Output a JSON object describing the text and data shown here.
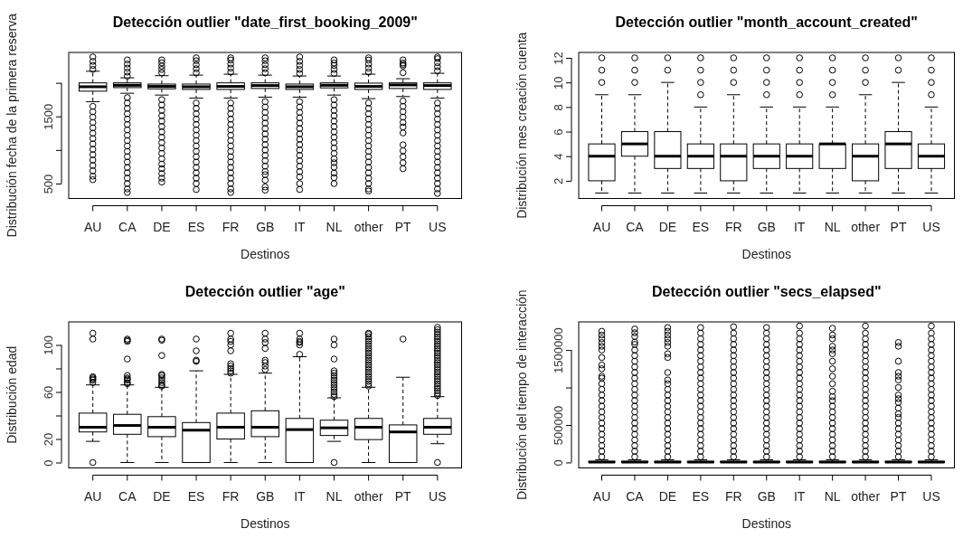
{
  "chart_data": [
    {
      "type": "box",
      "title": "Detección outlier \"date_first_booking_2009\"",
      "xlabel": "Destinos",
      "ylabel": "Distribución fecha de la primera reserva",
      "categories": [
        "AU",
        "CA",
        "DE",
        "ES",
        "FR",
        "GB",
        "IT",
        "NL",
        "other",
        "PT",
        "US"
      ],
      "ylim": [
        278,
        2453
      ],
      "yticks": [
        500,
        {
          "value": 1000,
          "label": null
        },
        1500,
        {
          "value": 2000,
          "label": null
        }
      ],
      "boxes": [
        {
          "low": 1720,
          "q1": 1876,
          "median": 1942,
          "q3": 2000,
          "high": 2173,
          "outliers": [
            1650,
            1570,
            1490,
            1410,
            1330,
            1250,
            1170,
            1090,
            1010,
            930,
            850,
            770,
            690,
            610,
            558,
            2200,
            2260,
            2320,
            2386
          ]
        },
        {
          "low": 1845,
          "q1": 1929,
          "median": 1964,
          "q3": 2000,
          "high": 2075,
          "outliers": [
            1780,
            1700,
            1620,
            1540,
            1460,
            1380,
            1300,
            1220,
            1140,
            1060,
            980,
            900,
            820,
            740,
            660,
            580,
            500,
            420,
            367,
            2100,
            2160,
            2220,
            2280,
            2342
          ]
        },
        {
          "low": 1818,
          "q1": 1911,
          "median": 1947,
          "q3": 1982,
          "high": 2107,
          "outliers": [
            1750,
            1670,
            1590,
            1510,
            1430,
            1350,
            1270,
            1190,
            1110,
            1030,
            950,
            870,
            790,
            722,
            650,
            580,
            522,
            2150,
            2200,
            2250,
            2300,
            2342
          ]
        },
        {
          "low": 1774,
          "q1": 1902,
          "median": 1942,
          "q3": 1982,
          "high": 2115,
          "outliers": [
            1700,
            1620,
            1540,
            1460,
            1380,
            1300,
            1220,
            1140,
            1060,
            980,
            900,
            820,
            740,
            660,
            580,
            500,
            411,
            2150,
            2210,
            2270,
            2330,
            2373
          ]
        },
        {
          "low": 1774,
          "q1": 1902,
          "median": 1947,
          "q3": 2000,
          "high": 2129,
          "outliers": [
            1700,
            1620,
            1540,
            1460,
            1380,
            1300,
            1220,
            1140,
            1060,
            980,
            900,
            820,
            740,
            660,
            580,
            500,
            420,
            367,
            2160,
            2220,
            2280,
            2340,
            2373
          ]
        },
        {
          "low": 1787,
          "q1": 1916,
          "median": 1960,
          "q3": 2000,
          "high": 2115,
          "outliers": [
            1720,
            1640,
            1560,
            1480,
            1400,
            1320,
            1240,
            1160,
            1080,
            1000,
            920,
            840,
            760,
            680,
            633,
            550,
            450,
            402,
            2150,
            2210,
            2270,
            2330,
            2373
          ]
        },
        {
          "low": 1787,
          "q1": 1902,
          "median": 1942,
          "q3": 1982,
          "high": 2102,
          "outliers": [
            1720,
            1640,
            1560,
            1480,
            1400,
            1320,
            1240,
            1160,
            1080,
            1000,
            920,
            840,
            760,
            677,
            600,
            500,
            411,
            2140,
            2200,
            2260,
            2320,
            2386
          ]
        },
        {
          "low": 1818,
          "q1": 1925,
          "median": 1964,
          "q3": 2000,
          "high": 2102,
          "outliers": [
            1750,
            1670,
            1590,
            1510,
            1430,
            1350,
            1270,
            1190,
            1110,
            1030,
            950,
            870,
            810,
            744,
            655,
            589,
            500,
            2140,
            2200,
            2260,
            2297,
            2342
          ]
        },
        {
          "low": 1765,
          "q1": 1902,
          "median": 1947,
          "q3": 1996,
          "high": 2129,
          "outliers": [
            1700,
            1620,
            1540,
            1460,
            1380,
            1300,
            1220,
            1140,
            1060,
            980,
            900,
            820,
            740,
            660,
            580,
            500,
            420,
            389,
            2160,
            2220,
            2280,
            2340,
            2373
          ]
        },
        {
          "low": 1796,
          "q1": 1916,
          "median": 1969,
          "q3": 2000,
          "high": 2062,
          "outliers": [
            1730,
            1650,
            1570,
            1490,
            1410,
            1343,
            1254,
            1077,
            988,
            899,
            810,
            722,
            2151,
            2253,
            2275,
            2297,
            2342
          ]
        },
        {
          "low": 1774,
          "q1": 1902,
          "median": 1960,
          "q3": 2000,
          "high": 2142,
          "outliers": [
            1700,
            1620,
            1540,
            1460,
            1380,
            1300,
            1220,
            1140,
            1060,
            980,
            900,
            820,
            740,
            660,
            580,
            500,
            420,
            353,
            2180,
            2240,
            2300,
            2360,
            2386
          ]
        }
      ]
    },
    {
      "type": "box",
      "title": "Detección outlier \"month_account_created\"",
      "xlabel": "Destinos",
      "ylabel": "Distribución mes creación cuenta",
      "categories": [
        "AU",
        "CA",
        "DE",
        "ES",
        "FR",
        "GB",
        "IT",
        "NL",
        "other",
        "PT",
        "US"
      ],
      "ylim": [
        0.56,
        12.44
      ],
      "yticks": [
        2,
        4,
        6,
        8,
        10,
        12
      ],
      "boxes": [
        {
          "low": 1,
          "q1": 2,
          "median": 4,
          "q3": 5,
          "high": 9,
          "outliers": [
            10,
            11,
            12
          ]
        },
        {
          "low": 1,
          "q1": 4,
          "median": 5,
          "q3": 6,
          "high": 9,
          "outliers": [
            10,
            11,
            12
          ]
        },
        {
          "low": 1,
          "q1": 3,
          "median": 4,
          "q3": 6,
          "high": 10,
          "outliers": [
            11,
            12
          ]
        },
        {
          "low": 1,
          "q1": 3,
          "median": 4,
          "q3": 5,
          "high": 8,
          "outliers": [
            9,
            10,
            11,
            12
          ]
        },
        {
          "low": 1,
          "q1": 2,
          "median": 4,
          "q3": 5,
          "high": 9,
          "outliers": [
            10,
            11,
            12
          ]
        },
        {
          "low": 1,
          "q1": 3,
          "median": 4,
          "q3": 5,
          "high": 8,
          "outliers": [
            9,
            10,
            11,
            12
          ]
        },
        {
          "low": 1,
          "q1": 3,
          "median": 4,
          "q3": 5,
          "high": 8,
          "outliers": [
            9,
            10,
            11,
            12
          ]
        },
        {
          "low": 1,
          "q1": 3,
          "median": 5,
          "q3": 5,
          "high": 8,
          "outliers": [
            9,
            10,
            11,
            12
          ]
        },
        {
          "low": 1,
          "q1": 2,
          "median": 4,
          "q3": 5,
          "high": 9,
          "outliers": [
            10,
            11,
            12
          ]
        },
        {
          "low": 1,
          "q1": 3,
          "median": 5,
          "q3": 6,
          "high": 10,
          "outliers": [
            11,
            12
          ]
        },
        {
          "low": 1,
          "q1": 3,
          "median": 4,
          "q3": 5,
          "high": 8,
          "outliers": [
            9,
            10,
            11,
            12
          ]
        }
      ]
    },
    {
      "type": "box",
      "title": "Detección outlier \"age\"",
      "xlabel": "Destinos",
      "ylabel": "Distribución edad",
      "categories": [
        "AU",
        "CA",
        "DE",
        "ES",
        "FR",
        "GB",
        "IT",
        "NL",
        "other",
        "PT",
        "US"
      ],
      "ylim": [
        -4.6,
        119.6
      ],
      "yticks": [
        0,
        20,
        {
          "value": 40,
          "label": null
        },
        60,
        {
          "value": 80,
          "label": null
        },
        100
      ],
      "boxes": [
        {
          "low": 18,
          "q1": 26,
          "median": 30,
          "q3": 42,
          "high": 66,
          "outliers": [
            0,
            68,
            70,
            71,
            72,
            73,
            105,
            110
          ]
        },
        {
          "low": 0,
          "q1": 24,
          "median": 31.5,
          "q3": 41,
          "high": 66,
          "outliers": [
            67,
            68,
            70,
            71,
            72,
            74,
            88,
            103,
            104,
            105
          ]
        },
        {
          "low": 0,
          "q1": 22,
          "median": 30,
          "q3": 39,
          "high": 64,
          "outliers": [
            65,
            66,
            68,
            70,
            72,
            74,
            75,
            91,
            104,
            105
          ]
        },
        {
          "low": 0,
          "q1": 0,
          "median": 27.5,
          "q3": 34,
          "high": 78,
          "outliers": [
            86,
            87,
            95,
            105
          ]
        },
        {
          "low": 0,
          "q1": 20,
          "median": 30,
          "q3": 42,
          "high": 75,
          "outliers": [
            76,
            78,
            80,
            82,
            84,
            95,
            100,
            103,
            105,
            110
          ]
        },
        {
          "low": 0,
          "q1": 22,
          "median": 30,
          "q3": 44,
          "high": 76,
          "outliers": [
            79,
            82,
            85,
            87,
            97,
            102,
            105,
            110
          ]
        },
        {
          "low": 0,
          "q1": 0,
          "median": 28,
          "q3": 37.5,
          "high": 90,
          "outliers": [
            92,
            100,
            102,
            103,
            105,
            110
          ]
        },
        {
          "low": 18,
          "q1": 23,
          "median": 29.5,
          "q3": 36,
          "high": 55,
          "outliers": [
            0,
            56,
            58,
            60,
            62,
            64,
            66,
            68,
            70,
            72,
            74,
            76,
            78,
            88,
            100,
            105
          ]
        },
        {
          "low": 0,
          "q1": 19.5,
          "median": 30,
          "q3": 37.5,
          "high": 64,
          "outliers": [
            65,
            67,
            69,
            71,
            73,
            75,
            77,
            79,
            81,
            83,
            85,
            87,
            89,
            91,
            93,
            95,
            97,
            99,
            101,
            103,
            105,
            107,
            109,
            110
          ]
        },
        {
          "low": 0,
          "q1": 0,
          "median": 26,
          "q3": 32,
          "high": 72.5,
          "outliers": [
            105
          ]
        },
        {
          "low": 16,
          "q1": 24,
          "median": 30,
          "q3": 37.5,
          "high": 56,
          "outliers": [
            0,
            57,
            59,
            61,
            63,
            65,
            67,
            69,
            71,
            73,
            75,
            77,
            79,
            81,
            83,
            85,
            87,
            89,
            91,
            93,
            95,
            97,
            99,
            101,
            103,
            105,
            107,
            109,
            111,
            113,
            115
          ]
        }
      ]
    },
    {
      "type": "box",
      "title": "Detección outlier \"secs_elapsed\"",
      "xlabel": "Destinos",
      "ylabel": "Distribución del tiempo de interacción",
      "categories": [
        "AU",
        "CA",
        "DE",
        "ES",
        "FR",
        "GB",
        "IT",
        "NL",
        "other",
        "PT",
        "US"
      ],
      "ylim": [
        -73000,
        1875000
      ],
      "yticks": [
        0,
        500000,
        {
          "value": 1000000,
          "label": null
        },
        1500000
      ],
      "boxes": [
        {
          "low": 0,
          "q1": 1000,
          "median": 5000,
          "q3": 15000,
          "high": 35000,
          "outliers": [
            75000,
            150000,
            225000,
            300000,
            375000,
            450000,
            525000,
            600000,
            675000,
            750000,
            825000,
            900000,
            975000,
            1050000,
            1125000,
            1150000,
            1250000,
            1300000,
            1400000,
            1500000,
            1550000,
            1600000,
            1650000,
            1700000,
            1750000
          ]
        },
        {
          "low": 0,
          "q1": 1000,
          "median": 5000,
          "q3": 15000,
          "high": 35000,
          "outliers": [
            75000,
            150000,
            225000,
            300000,
            375000,
            450000,
            525000,
            600000,
            675000,
            750000,
            825000,
            900000,
            975000,
            1050000,
            1125000,
            1200000,
            1275000,
            1350000,
            1425000,
            1500000,
            1575000,
            1605000,
            1680000,
            1730000,
            1780000
          ]
        },
        {
          "low": 0,
          "q1": 1000,
          "median": 5000,
          "q3": 15000,
          "high": 35000,
          "outliers": [
            75000,
            150000,
            225000,
            300000,
            375000,
            450000,
            525000,
            600000,
            675000,
            750000,
            825000,
            900000,
            975000,
            1050000,
            1100000,
            1200000,
            1400000,
            1450000,
            1550000,
            1600000,
            1650000,
            1700000,
            1750000,
            1800000
          ]
        },
        {
          "low": 0,
          "q1": 1000,
          "median": 5000,
          "q3": 15000,
          "high": 35000,
          "outliers": [
            75000,
            150000,
            225000,
            300000,
            375000,
            450000,
            525000,
            600000,
            675000,
            750000,
            825000,
            900000,
            975000,
            1050000,
            1125000,
            1200000,
            1275000,
            1350000,
            1425000,
            1500000,
            1575000,
            1650000,
            1725000,
            1800000
          ]
        },
        {
          "low": 0,
          "q1": 1000,
          "median": 5000,
          "q3": 15000,
          "high": 35000,
          "outliers": [
            75000,
            150000,
            225000,
            300000,
            375000,
            450000,
            525000,
            600000,
            675000,
            750000,
            825000,
            900000,
            975000,
            1050000,
            1125000,
            1200000,
            1275000,
            1350000,
            1425000,
            1500000,
            1575000,
            1650000,
            1725000,
            1810000
          ]
        },
        {
          "low": 0,
          "q1": 1000,
          "median": 5000,
          "q3": 15000,
          "high": 35000,
          "outliers": [
            75000,
            150000,
            225000,
            300000,
            375000,
            450000,
            525000,
            600000,
            675000,
            750000,
            825000,
            900000,
            975000,
            1050000,
            1125000,
            1200000,
            1275000,
            1350000,
            1425000,
            1500000,
            1575000,
            1650000,
            1725000,
            1800000
          ]
        },
        {
          "low": 0,
          "q1": 1000,
          "median": 5000,
          "q3": 15000,
          "high": 35000,
          "outliers": [
            75000,
            150000,
            225000,
            300000,
            375000,
            450000,
            525000,
            600000,
            675000,
            750000,
            825000,
            900000,
            975000,
            1050000,
            1125000,
            1200000,
            1275000,
            1350000,
            1425000,
            1500000,
            1575000,
            1650000,
            1725000,
            1820000
          ]
        },
        {
          "low": 0,
          "q1": 1000,
          "median": 5000,
          "q3": 15000,
          "high": 35000,
          "outliers": [
            75000,
            150000,
            225000,
            300000,
            375000,
            450000,
            525000,
            600000,
            675000,
            750000,
            825000,
            879000,
            950000,
            1050000,
            1150000,
            1250000,
            1350000,
            1450000,
            1500000,
            1550000,
            1650000,
            1700000,
            1790000
          ]
        },
        {
          "low": 0,
          "q1": 1000,
          "median": 5000,
          "q3": 15000,
          "high": 35000,
          "outliers": [
            75000,
            150000,
            225000,
            300000,
            375000,
            450000,
            525000,
            600000,
            675000,
            750000,
            825000,
            900000,
            975000,
            1050000,
            1125000,
            1200000,
            1275000,
            1350000,
            1425000,
            1500000,
            1575000,
            1650000,
            1725000,
            1820000
          ]
        },
        {
          "low": 0,
          "q1": 1000,
          "median": 5000,
          "q3": 15000,
          "high": 35000,
          "outliers": [
            75000,
            150000,
            225000,
            300000,
            375000,
            450000,
            525000,
            600000,
            650000,
            725000,
            800000,
            850000,
            900000,
            1000000,
            1100000,
            1150000,
            1200000,
            1350000,
            1550000,
            1600000
          ]
        },
        {
          "low": 0,
          "q1": 1000,
          "median": 5000,
          "q3": 15000,
          "high": 35000,
          "outliers": [
            75000,
            150000,
            225000,
            300000,
            375000,
            450000,
            525000,
            600000,
            675000,
            750000,
            825000,
            900000,
            975000,
            1050000,
            1125000,
            1200000,
            1275000,
            1350000,
            1425000,
            1500000,
            1575000,
            1650000,
            1725000,
            1820000
          ]
        }
      ]
    }
  ]
}
